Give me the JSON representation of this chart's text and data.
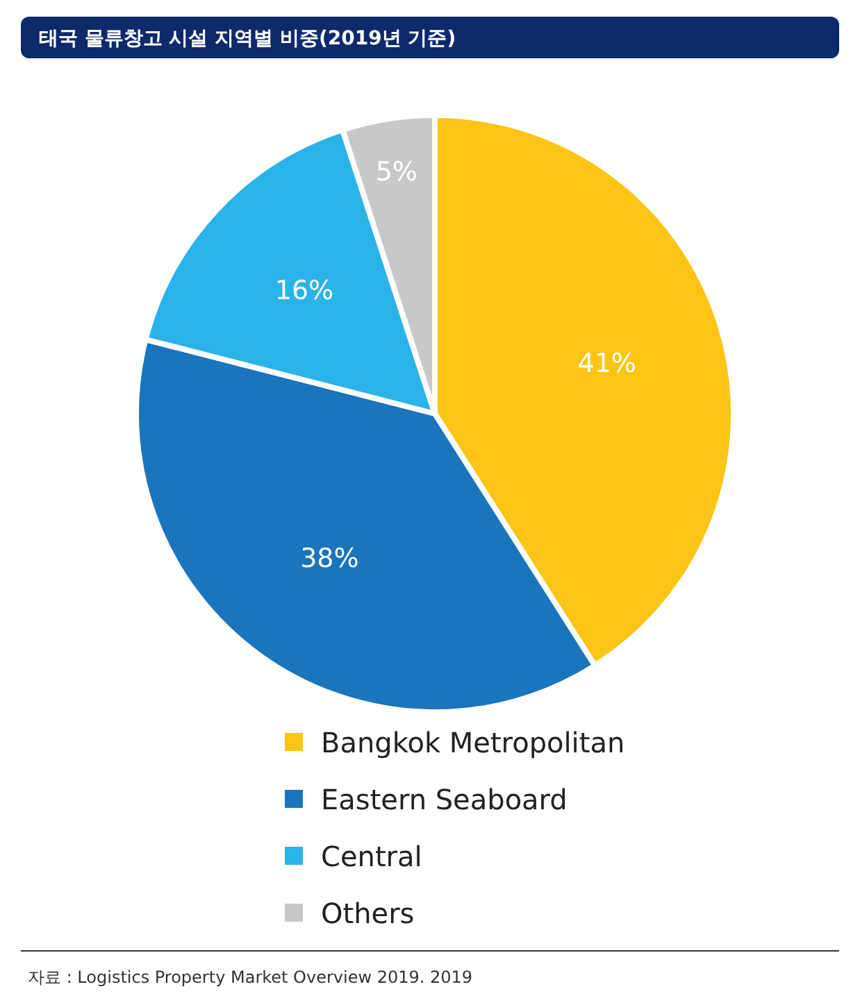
{
  "chart_data": {
    "type": "pie",
    "title": "태국 물류창고 시설 지역별 비중(2019년 기준)",
    "categories": [
      "Bangkok Metropolitan",
      "Eastern Seaboard",
      "Central",
      "Others"
    ],
    "values": [
      41,
      38,
      16,
      5
    ],
    "colors": [
      "#fcc414",
      "#1b75bc",
      "#2ab3e8",
      "#c8c8c8"
    ],
    "value_labels": [
      "41%",
      "38%",
      "16%",
      "5%"
    ],
    "legend": "bottom",
    "annotations": [
      "자료 : Logistics Property Market Overview 2019. 2019"
    ]
  }
}
